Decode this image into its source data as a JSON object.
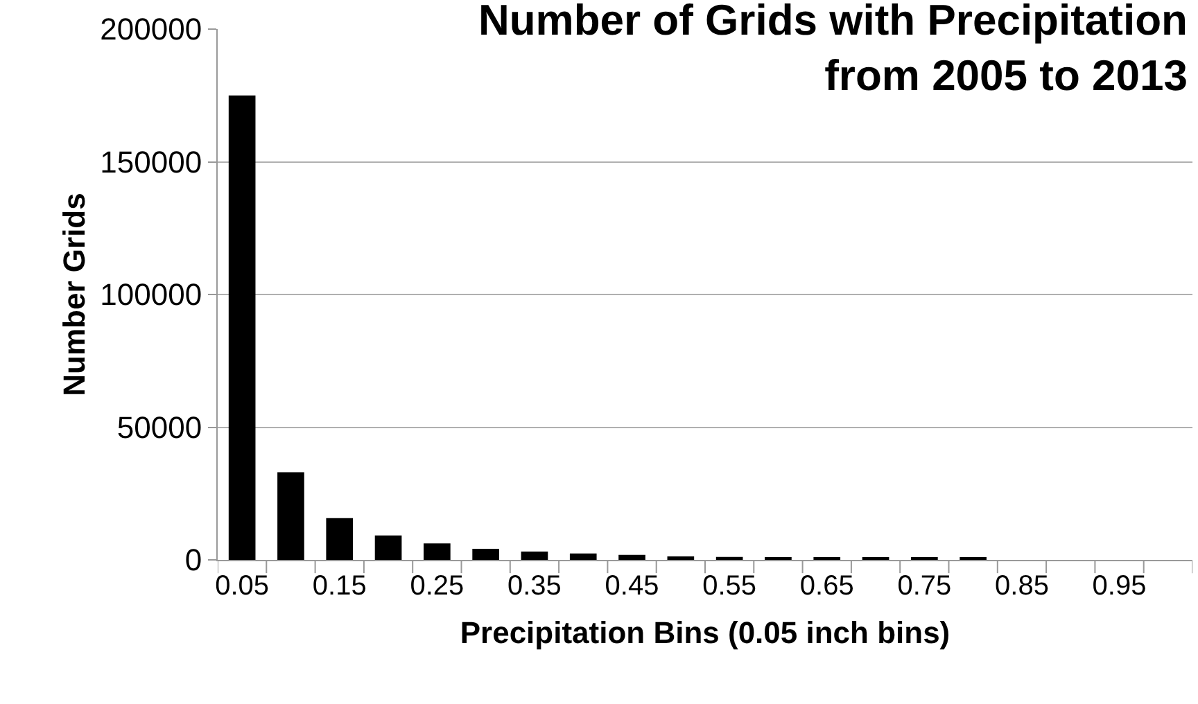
{
  "chart_data": {
    "type": "bar",
    "title": "Number of Grids with Precipitation\nfrom 2005 to 2013",
    "xlabel": "Precipitation Bins (0.05 inch bins)",
    "ylabel": "Number Grids",
    "categories": [
      "0.05",
      null,
      "0.15",
      null,
      "0.25",
      null,
      "0.35",
      null,
      "0.45",
      null,
      "0.55",
      null,
      "0.65",
      null,
      "0.75",
      null,
      "0.85",
      null,
      "0.95",
      null
    ],
    "values": [
      175000,
      33000,
      15700,
      9200,
      6200,
      4200,
      3100,
      2400,
      1900,
      1300,
      1100,
      600,
      600,
      600,
      600,
      600,
      0,
      0,
      0,
      0
    ],
    "color": "#000000",
    "ylim": [
      0,
      200000
    ],
    "yticks": [
      0,
      50000,
      100000,
      150000,
      200000
    ],
    "grid": "y"
  }
}
